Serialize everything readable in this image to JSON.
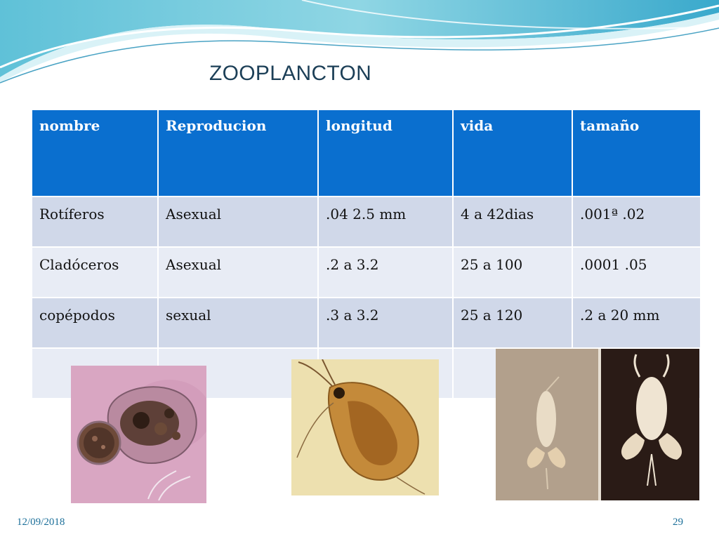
{
  "slide": {
    "title": "ZOOPLANCTON",
    "date": "12/09/2018",
    "page_number": "29"
  },
  "table": {
    "headers": [
      "nombre",
      "Reproducion",
      "longitud",
      "vida",
      "tamaño"
    ],
    "rows": [
      [
        "Rotíferos",
        "Asexual",
        ".04  2.5 mm",
        "4 a 42dias",
        ".001ª  .02"
      ],
      [
        "Cladóceros",
        "Asexual",
        ".2 a 3.2",
        "25 a 100",
        ".0001 .05"
      ],
      [
        "copépodos",
        "sexual",
        ".3 a 3.2",
        "25 a 120",
        ".2 a 20 mm"
      ],
      [
        "",
        "",
        "",
        "",
        ""
      ]
    ]
  },
  "images": [
    {
      "subject": "rotifer-micrograph"
    },
    {
      "subject": "daphnia-micrograph"
    },
    {
      "subject": "copepod-photographs"
    }
  ],
  "colors": {
    "header_bg": "#0a6fcf",
    "row_dark": "#d0d8e9",
    "row_light": "#e8ecf5",
    "title": "#1c3f57",
    "footer": "#1c6f99"
  }
}
